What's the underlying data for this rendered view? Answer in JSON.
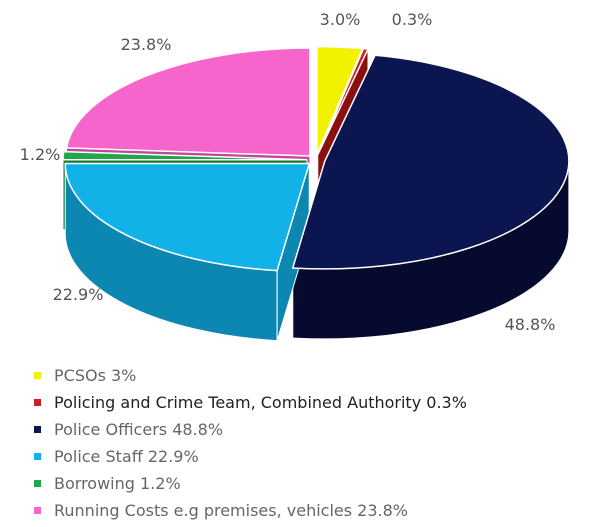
{
  "chart_data": {
    "type": "pie",
    "title": "",
    "categories": [
      "PCSOs",
      "Policing and Crime Team, Combined Authority",
      "Police Officers",
      "Police Staff",
      "Borrowing",
      "Running Costs e.g premises, vehicles"
    ],
    "values": [
      3.0,
      0.3,
      48.8,
      22.9,
      1.2,
      23.8
    ],
    "data_labels": [
      "3.0%",
      "0.3%",
      "48.8%",
      "22.9%",
      "1.2%",
      "23.8%"
    ],
    "colors": [
      "#f2f200",
      "#cc1f1f",
      "#0b1550",
      "#12b2e8",
      "#1fa84a",
      "#f565cc"
    ],
    "side_colors": [
      "#bcbc00",
      "#8a1010",
      "#050a2e",
      "#0b87b2",
      "#127a33",
      "#c2459f"
    ],
    "style": "3d-tilted",
    "legend_position": "bottom",
    "legend": [
      "PCSOs 3%",
      "Policing and Crime Team, Combined Authority 0.3%",
      "Police Officers 48.8%",
      "Police Staff 22.9%",
      "Borrowing 1.2%",
      "Running Costs e.g premises, vehicles 23.8%"
    ]
  }
}
